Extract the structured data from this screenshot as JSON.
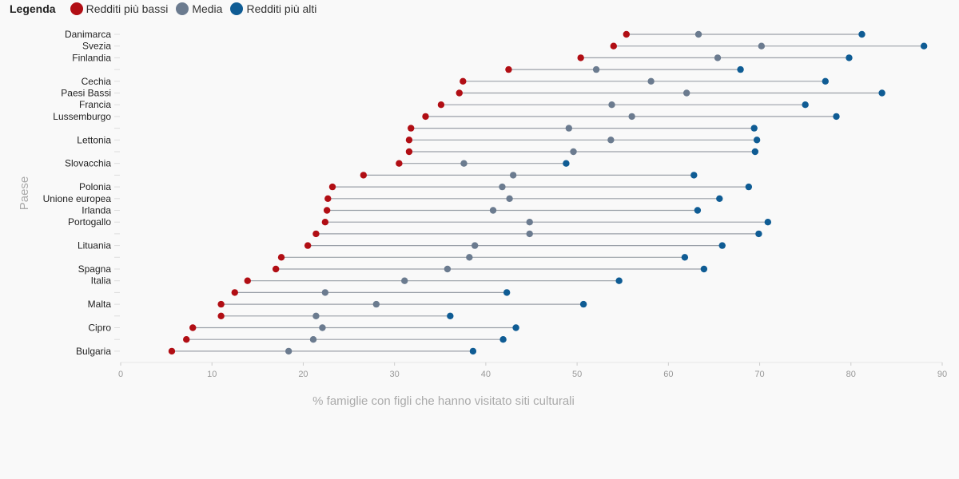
{
  "legend": {
    "title": "Legenda",
    "items": [
      {
        "label": "Redditi più bassi",
        "color": "#b10e14"
      },
      {
        "label": "Media",
        "color": "#6b7b8f"
      },
      {
        "label": "Redditi più alti",
        "color": "#0f5c94"
      }
    ]
  },
  "chart_data": {
    "type": "dumbbell",
    "xlabel": "% famiglie con figli che hanno visitato siti culturali",
    "ylabel": "Paese",
    "xlim": [
      0,
      90
    ],
    "xticks": [
      0,
      10,
      20,
      30,
      40,
      50,
      60,
      70,
      80,
      90
    ],
    "grid": false,
    "legend_position": "top-left",
    "series_names": [
      "Redditi più bassi",
      "Media",
      "Redditi più alti"
    ],
    "categories": [
      "Danimarca",
      "Svezia",
      "Finlandia",
      "",
      "Cechia",
      "Paesi Bassi",
      "Francia",
      "Lussemburgo",
      "",
      "Lettonia",
      "",
      "Slovacchia",
      "",
      "Polonia",
      "Unione europea",
      "Irlanda",
      "Portogallo",
      "",
      "Lituania",
      "",
      "Spagna",
      "Italia",
      "",
      "Malta",
      "",
      "Cipro",
      "",
      "Bulgaria"
    ],
    "low": [
      55.4,
      54.0,
      50.4,
      42.5,
      37.5,
      37.1,
      35.1,
      33.4,
      31.8,
      31.6,
      31.6,
      30.5,
      26.6,
      23.2,
      22.7,
      22.6,
      22.4,
      21.4,
      20.5,
      17.6,
      17.0,
      13.9,
      12.5,
      11.0,
      11.0,
      7.9,
      7.2,
      5.6
    ],
    "mean": [
      63.3,
      70.2,
      65.4,
      52.1,
      58.1,
      62.0,
      53.8,
      56.0,
      49.1,
      53.7,
      49.6,
      37.6,
      43.0,
      41.8,
      42.6,
      40.8,
      44.8,
      44.8,
      38.8,
      38.2,
      35.8,
      31.1,
      22.4,
      28.0,
      21.4,
      22.1,
      21.1,
      18.4
    ],
    "high": [
      81.2,
      88.0,
      79.8,
      67.9,
      77.2,
      83.4,
      75.0,
      78.4,
      69.4,
      69.7,
      69.5,
      48.8,
      62.8,
      68.8,
      65.6,
      63.2,
      70.9,
      69.9,
      65.9,
      61.8,
      63.9,
      54.6,
      42.3,
      50.7,
      36.1,
      43.3,
      41.9,
      38.6
    ]
  }
}
